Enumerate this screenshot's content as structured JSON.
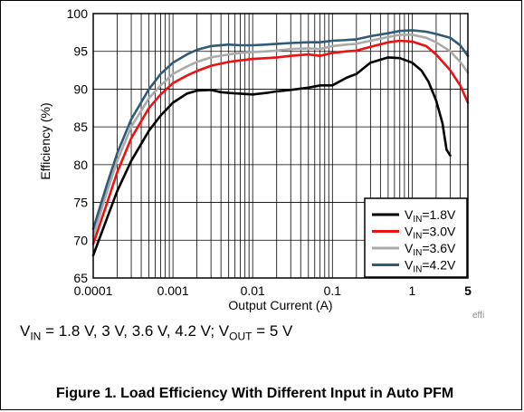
{
  "caption": "Figure 1. Load Efficiency With Different Input in Auto PFM",
  "conditions": {
    "vin_sym": "V",
    "vin_sub": "IN",
    "vin_values": " = 1.8 V, 3 V, 3.6 V, 4.2 V; ",
    "vout_sym": "V",
    "vout_sub": "OUT",
    "vout_value": " = 5 V"
  },
  "watermark": "effi",
  "chart_data": {
    "type": "line",
    "title": "",
    "xlabel": "Output Current (A)",
    "ylabel": "Efficiency (%)",
    "xscale": "log",
    "xlim": [
      0.0001,
      5
    ],
    "ylim": [
      65,
      100
    ],
    "xticks": [
      {
        "value": 0.0001,
        "label": "0.0001",
        "bold": false
      },
      {
        "value": 0.001,
        "label": "0.001",
        "bold": false
      },
      {
        "value": 0.01,
        "label": "0.01",
        "bold": false
      },
      {
        "value": 0.1,
        "label": "0.1",
        "bold": false
      },
      {
        "value": 1,
        "label": "1",
        "bold": false
      },
      {
        "value": 5,
        "label": "5",
        "bold": true
      }
    ],
    "yticks": [
      65,
      70,
      75,
      80,
      85,
      90,
      95,
      100
    ],
    "grid": true,
    "legend_position": "bottom-right",
    "series": [
      {
        "name_sym": "V",
        "name_sub": "IN",
        "name_val": "=1.8V",
        "color": "#000000",
        "x": [
          0.0001,
          0.00015,
          0.0002,
          0.0003,
          0.0005,
          0.0007,
          0.001,
          0.0015,
          0.002,
          0.003,
          0.004,
          0.005,
          0.007,
          0.01,
          0.015,
          0.02,
          0.03,
          0.05,
          0.07,
          0.1,
          0.15,
          0.2,
          0.3,
          0.5,
          0.7,
          1,
          1.3,
          1.6,
          2,
          2.4,
          2.7,
          3
        ],
        "y": [
          68,
          73,
          76.5,
          80.5,
          84.5,
          86.5,
          88.2,
          89.4,
          89.8,
          89.9,
          89.6,
          89.5,
          89.4,
          89.3,
          89.5,
          89.7,
          89.9,
          90.2,
          90.5,
          90.5,
          91.5,
          92,
          93.5,
          94.2,
          94.1,
          93.5,
          92.5,
          91,
          88.5,
          85.5,
          82,
          81.2
        ]
      },
      {
        "name_sym": "V",
        "name_sub": "IN",
        "name_val": "=3.0V",
        "color": "#ee1111",
        "x": [
          0.0001,
          0.00015,
          0.0002,
          0.0003,
          0.0005,
          0.0007,
          0.001,
          0.0015,
          0.002,
          0.003,
          0.005,
          0.007,
          0.01,
          0.015,
          0.02,
          0.03,
          0.05,
          0.07,
          0.1,
          0.15,
          0.2,
          0.3,
          0.5,
          0.7,
          1,
          1.5,
          2,
          3,
          4,
          5
        ],
        "y": [
          69.5,
          75,
          79,
          83.5,
          87.5,
          89.3,
          90.8,
          91.8,
          92.4,
          93.1,
          93.6,
          93.8,
          94.0,
          94.1,
          94.2,
          94.4,
          94.6,
          94.4,
          94.8,
          95.0,
          95.1,
          95.6,
          96.2,
          96.4,
          96.3,
          95.7,
          94.6,
          92.5,
          90.5,
          88.2
        ]
      },
      {
        "name_sym": "V",
        "name_sub": "IN",
        "name_val": "=3.6V",
        "color": "#aaaaaa",
        "x": [
          0.0001,
          0.00015,
          0.0002,
          0.0003,
          0.0005,
          0.0007,
          0.001,
          0.0015,
          0.002,
          0.003,
          0.005,
          0.007,
          0.01,
          0.015,
          0.02,
          0.03,
          0.05,
          0.07,
          0.1,
          0.15,
          0.2,
          0.3,
          0.5,
          0.7,
          1,
          1.5,
          2,
          3,
          4,
          5
        ],
        "y": [
          70.5,
          76.5,
          80.5,
          85,
          88.8,
          90.5,
          92.0,
          93.0,
          93.6,
          94.2,
          94.6,
          94.8,
          94.9,
          95.0,
          95.1,
          95.3,
          95.4,
          95.3,
          95.7,
          95.9,
          96.0,
          96.4,
          96.9,
          97.2,
          97.2,
          96.8,
          96.2,
          95,
          93.6,
          92.2
        ]
      },
      {
        "name_sym": "V",
        "name_sub": "IN",
        "name_val": "=4.2V",
        "color": "#2f5a78",
        "x": [
          0.0001,
          0.00015,
          0.0002,
          0.0003,
          0.0005,
          0.0007,
          0.001,
          0.0015,
          0.002,
          0.003,
          0.005,
          0.007,
          0.01,
          0.015,
          0.02,
          0.03,
          0.05,
          0.07,
          0.1,
          0.15,
          0.2,
          0.3,
          0.5,
          0.7,
          1,
          1.5,
          2,
          3,
          4,
          5
        ],
        "y": [
          71.5,
          77.5,
          81.5,
          86,
          90,
          92,
          93.5,
          94.6,
          95.2,
          95.7,
          95.9,
          95.8,
          95.8,
          95.9,
          96.0,
          96.1,
          96.2,
          96.2,
          96.4,
          96.5,
          96.6,
          97.0,
          97.4,
          97.7,
          97.8,
          97.6,
          97.3,
          96.8,
          95.8,
          94.4
        ]
      }
    ]
  }
}
